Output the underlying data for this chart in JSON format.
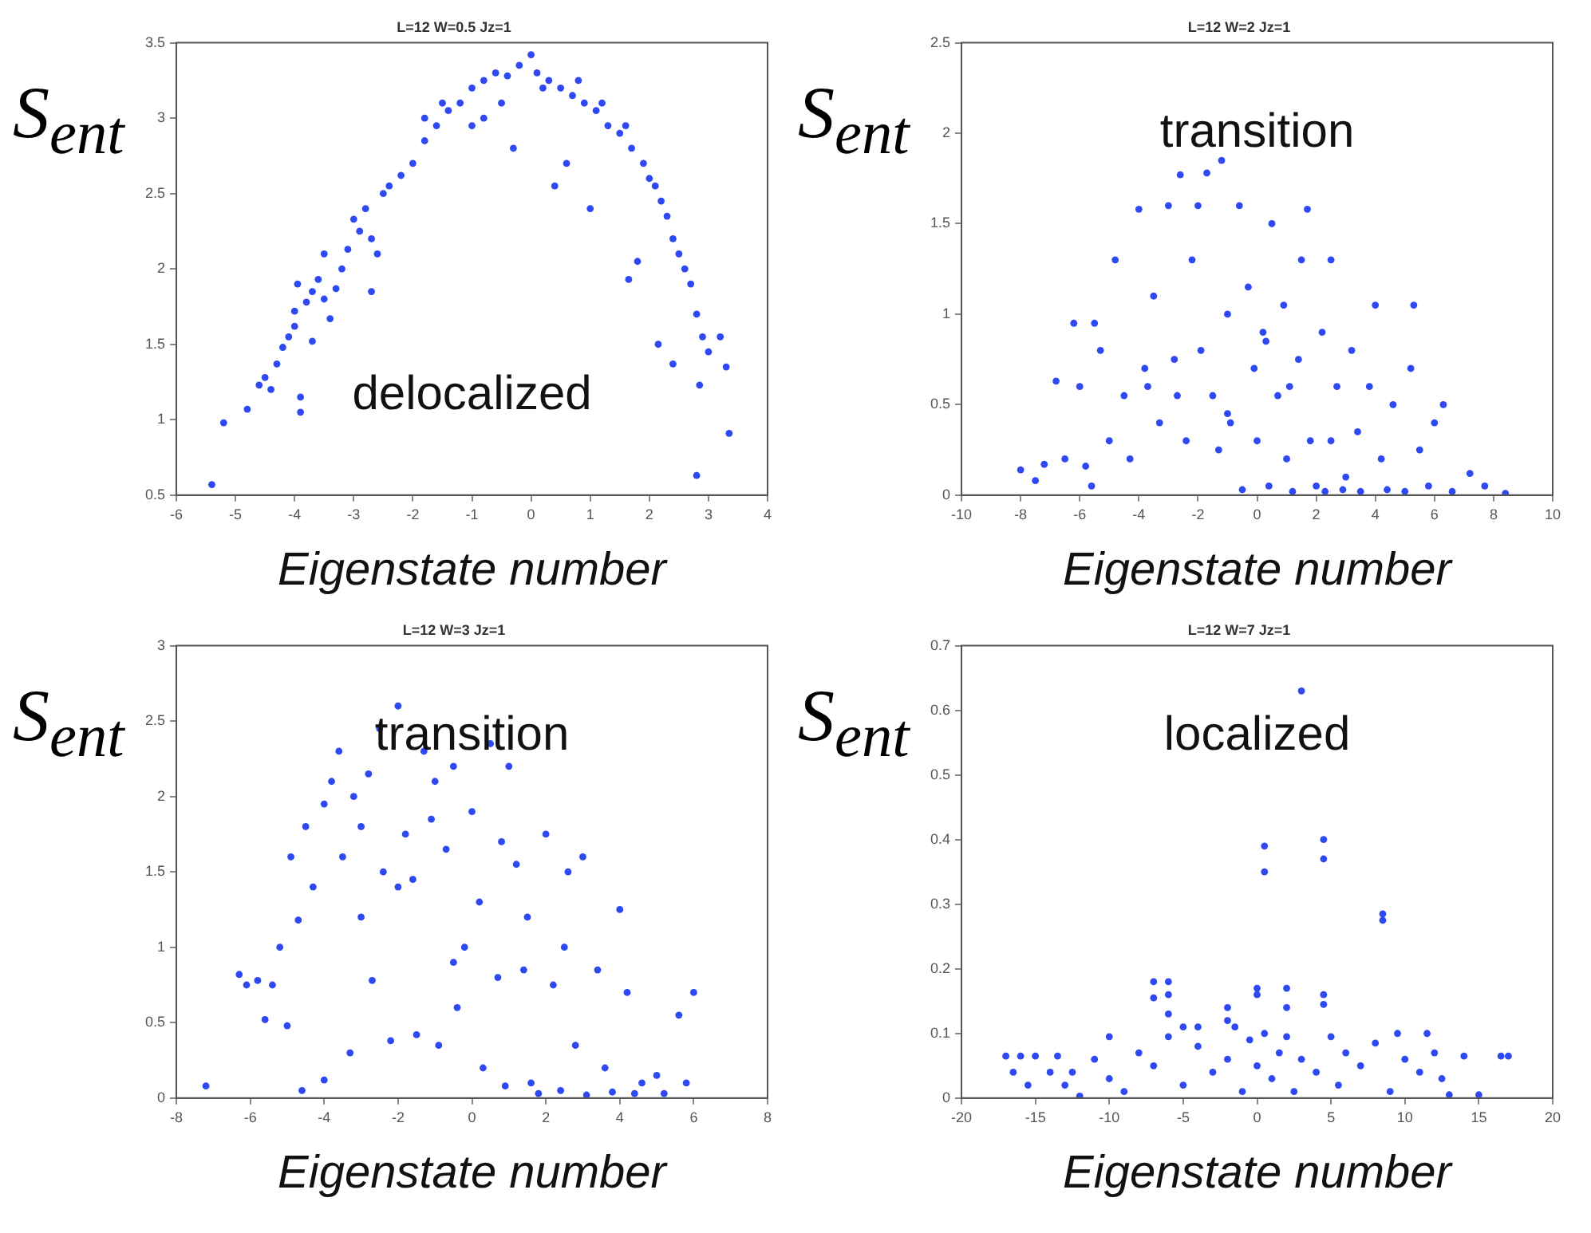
{
  "chart_data": [
    {
      "type": "scatter",
      "title": "L=12 W=0.5 Jz=1",
      "xlabel": "Eigenstate number",
      "ylabel": "S$_{ent}$",
      "annotations": [
        "delocalized"
      ],
      "marker": "circle",
      "grid": false,
      "legend": false,
      "xlim": [
        -6,
        4
      ],
      "xticks": [
        -6,
        -5,
        -4,
        -3,
        -2,
        -1,
        0,
        1,
        2,
        3,
        4
      ],
      "ylim": [
        0.5,
        3.5
      ],
      "yticks": [
        0.5,
        1,
        1.5,
        2,
        2.5,
        3,
        3.5
      ],
      "series": [
        {
          "color": "#2f49f2",
          "x": [
            -5.4,
            -5.2,
            -4.8,
            -4.6,
            -4.5,
            -4.4,
            -4.3,
            -4.2,
            -4.1,
            -4.0,
            -4.0,
            -3.95,
            -3.9,
            -3.9,
            -3.8,
            -3.7,
            -3.7,
            -3.6,
            -3.5,
            -3.4,
            -3.3,
            -3.2,
            -3.1,
            -3.0,
            -2.9,
            -2.8,
            -2.7,
            -2.6,
            -2.5,
            -2.4,
            -2.2,
            -2.0,
            -1.8,
            -1.6,
            -1.4,
            -1.2,
            -1.0,
            -0.8,
            -0.6,
            -0.4,
            -0.2,
            0,
            0.1,
            0.3,
            0.5,
            0.7,
            0.9,
            1.1,
            1.3,
            1.5,
            1.7,
            1.9,
            2.1,
            2.2,
            2.3,
            2.4,
            2.5,
            2.6,
            2.7,
            2.8,
            2.9,
            3.0,
            3.2,
            3.3,
            3.35,
            2.8,
            2.85,
            1.65,
            2.15,
            2.4,
            0.4,
            1.0,
            -0.3,
            -1.0,
            -0.8,
            0.6,
            1.8,
            -2.7,
            -3.5,
            -1.8,
            -1.5,
            -0.5,
            0.2,
            0.8,
            1.2,
            1.6,
            2.0
          ],
          "values": [
            0.57,
            0.98,
            1.07,
            1.23,
            1.28,
            1.2,
            1.37,
            1.48,
            1.55,
            1.62,
            1.72,
            1.9,
            1.15,
            1.05,
            1.78,
            1.85,
            1.52,
            1.93,
            2.1,
            1.67,
            1.87,
            2.0,
            2.13,
            2.33,
            2.25,
            2.4,
            2.2,
            2.1,
            2.5,
            2.55,
            2.62,
            2.7,
            2.85,
            2.95,
            3.05,
            3.1,
            3.2,
            3.25,
            3.3,
            3.28,
            3.35,
            3.42,
            3.3,
            3.25,
            3.2,
            3.15,
            3.1,
            3.05,
            2.95,
            2.9,
            2.8,
            2.7,
            2.55,
            2.45,
            2.35,
            2.2,
            2.1,
            2.0,
            1.9,
            1.7,
            1.55,
            1.45,
            1.55,
            1.35,
            0.91,
            0.63,
            1.23,
            1.93,
            1.5,
            1.37,
            2.55,
            2.4,
            2.8,
            2.95,
            3.0,
            2.7,
            2.05,
            1.85,
            1.8,
            3.0,
            3.1,
            3.1,
            3.2,
            3.25,
            3.1,
            2.95,
            2.6
          ]
        }
      ]
    },
    {
      "type": "scatter",
      "title": "L=12 W=2 Jz=1",
      "xlabel": "Eigenstate number",
      "ylabel": "S$_{ent}$",
      "annotations": [
        "transition"
      ],
      "marker": "circle",
      "grid": false,
      "legend": false,
      "xlim": [
        -10,
        10
      ],
      "xticks": [
        -10,
        -8,
        -6,
        -4,
        -2,
        0,
        2,
        4,
        6,
        8,
        10
      ],
      "ylim": [
        0,
        2.5
      ],
      "yticks": [
        0,
        0.5,
        1,
        1.5,
        2,
        2.5
      ],
      "series": [
        {
          "color": "#2f49f2",
          "x": [
            -8,
            -7.5,
            -7.2,
            -6.8,
            -6.5,
            -6.2,
            -6,
            -5.8,
            -5.6,
            -5.3,
            -5,
            -4.8,
            -4.5,
            -4.3,
            -4.0,
            -3.8,
            -3.5,
            -3.3,
            -3.0,
            -2.8,
            -2.6,
            -2.4,
            -2.2,
            -2.0,
            -1.9,
            -1.7,
            -1.5,
            -1.3,
            -1.2,
            -1.0,
            -0.9,
            -0.6,
            -0.5,
            -0.3,
            -0.1,
            0,
            0.2,
            0.4,
            0.5,
            0.7,
            0.9,
            1.0,
            1.2,
            1.4,
            1.5,
            1.7,
            1.8,
            2.0,
            2.2,
            2.3,
            2.5,
            2.7,
            2.9,
            3.0,
            3.2,
            3.4,
            3.5,
            3.8,
            4.0,
            4.2,
            4.4,
            4.6,
            5.0,
            5.2,
            5.3,
            5.5,
            5.8,
            6.0,
            6.3,
            6.6,
            7.2,
            7.7,
            8.4,
            -2.7,
            -1.0,
            0.3,
            1.1,
            -3.7,
            -5.5,
            2.5
          ],
          "values": [
            0.14,
            0.08,
            0.17,
            0.63,
            0.2,
            0.95,
            0.6,
            0.16,
            0.05,
            0.8,
            0.3,
            1.3,
            0.55,
            0.2,
            1.58,
            0.7,
            1.1,
            0.4,
            1.6,
            0.75,
            1.77,
            0.3,
            1.3,
            1.6,
            0.8,
            1.78,
            0.55,
            0.25,
            1.85,
            1.0,
            0.4,
            1.6,
            0.03,
            1.15,
            0.7,
            0.3,
            0.9,
            0.05,
            1.5,
            0.55,
            1.05,
            0.2,
            0.02,
            0.75,
            1.3,
            1.58,
            0.3,
            0.05,
            0.9,
            0.02,
            1.3,
            0.6,
            0.03,
            0.1,
            0.8,
            0.35,
            0.02,
            0.6,
            1.05,
            0.2,
            0.03,
            0.5,
            0.02,
            0.7,
            1.05,
            0.25,
            0.05,
            0.4,
            0.5,
            0.02,
            0.12,
            0.05,
            0.01,
            0.55,
            0.45,
            0.85,
            0.6,
            0.6,
            0.95,
            0.3
          ]
        }
      ]
    },
    {
      "type": "scatter",
      "title": "L=12 W=3 Jz=1",
      "xlabel": "Eigenstate number",
      "ylabel": "S$_{ent}$",
      "annotations": [
        "transition"
      ],
      "marker": "circle",
      "grid": false,
      "legend": false,
      "xlim": [
        -8,
        8
      ],
      "xticks": [
        -8,
        -6,
        -4,
        -2,
        0,
        2,
        4,
        6,
        8
      ],
      "ylim": [
        0,
        3
      ],
      "yticks": [
        0,
        0.5,
        1,
        1.5,
        2,
        2.5,
        3
      ],
      "series": [
        {
          "color": "#2f49f2",
          "x": [
            -7.2,
            -6.3,
            -6.1,
            -5.8,
            -5.6,
            -5.4,
            -5.2,
            -5.0,
            -4.9,
            -4.7,
            -4.6,
            -4.5,
            -4.3,
            -4.0,
            -4.0,
            -3.8,
            -3.6,
            -3.5,
            -3.3,
            -3.2,
            -3.0,
            -2.8,
            -2.7,
            -2.5,
            -2.4,
            -2.2,
            -2.0,
            -1.8,
            -1.6,
            -1.5,
            -1.3,
            -1.1,
            -0.9,
            -0.7,
            -0.5,
            -0.4,
            -0.2,
            0,
            0.2,
            0.3,
            0.5,
            0.7,
            0.9,
            1.0,
            1.2,
            1.4,
            1.6,
            1.8,
            2.0,
            2.2,
            2.4,
            2.6,
            2.8,
            3.0,
            3.1,
            3.4,
            3.6,
            3.8,
            4.0,
            4.2,
            4.4,
            4.6,
            5.0,
            5.2,
            5.6,
            5.8,
            6.0,
            -3.0,
            -1.0,
            0.8,
            2.5,
            -2.0,
            1.5,
            -0.5
          ],
          "values": [
            0.08,
            0.82,
            0.75,
            0.78,
            0.52,
            0.75,
            1.0,
            0.48,
            1.6,
            1.18,
            0.05,
            1.8,
            1.4,
            0.12,
            1.95,
            2.1,
            2.3,
            1.6,
            0.3,
            2.0,
            1.2,
            2.15,
            0.78,
            2.45,
            1.5,
            0.38,
            2.6,
            1.75,
            1.45,
            0.42,
            2.3,
            1.85,
            0.35,
            1.65,
            2.2,
            0.6,
            1.0,
            1.9,
            1.3,
            0.2,
            2.35,
            0.8,
            0.08,
            2.2,
            1.55,
            0.85,
            0.1,
            0.03,
            1.75,
            0.75,
            0.05,
            1.5,
            0.35,
            1.6,
            0.02,
            0.85,
            0.2,
            0.04,
            1.25,
            0.7,
            0.03,
            0.1,
            0.15,
            0.03,
            0.55,
            0.1,
            0.7,
            1.8,
            2.1,
            1.7,
            1.0,
            1.4,
            1.2,
            0.9
          ]
        }
      ]
    },
    {
      "type": "scatter",
      "title": "L=12 W=7 Jz=1",
      "xlabel": "Eigenstate number",
      "ylabel": "S$_{ent}$",
      "annotations": [
        "localized"
      ],
      "marker": "circle",
      "grid": false,
      "legend": false,
      "xlim": [
        -20,
        20
      ],
      "xticks": [
        -20,
        -15,
        -10,
        -5,
        0,
        5,
        10,
        15,
        20
      ],
      "ylim": [
        0,
        0.7
      ],
      "yticks": [
        0,
        0.1,
        0.2,
        0.3,
        0.4,
        0.5,
        0.6,
        0.7
      ],
      "series": [
        {
          "color": "#2f49f2",
          "x": [
            3,
            0.5,
            0.5,
            4.5,
            4.5,
            8.5,
            8.5,
            -7,
            -7,
            -6,
            -6,
            -6,
            -2,
            0,
            0,
            2,
            2,
            4.5,
            4.5,
            -4,
            -5,
            -1.5,
            -2,
            9.5,
            11.5,
            -17,
            -16.5,
            -16,
            -15.5,
            -15,
            -14,
            -13.5,
            -13,
            -12.5,
            -12,
            -11,
            -10,
            -10,
            -9,
            -8,
            -7,
            -6,
            -5,
            -4,
            -3,
            -2,
            -1,
            -0.5,
            0,
            0.5,
            1,
            1.5,
            2,
            2.5,
            3,
            4,
            5,
            5.5,
            6,
            7,
            8,
            9,
            10,
            11,
            12,
            12.5,
            13,
            14,
            15,
            16.5,
            17
          ],
          "values": [
            0.63,
            0.39,
            0.35,
            0.4,
            0.37,
            0.285,
            0.275,
            0.18,
            0.155,
            0.18,
            0.16,
            0.13,
            0.14,
            0.17,
            0.16,
            0.17,
            0.14,
            0.16,
            0.145,
            0.11,
            0.11,
            0.11,
            0.12,
            0.1,
            0.1,
            0.065,
            0.04,
            0.065,
            0.02,
            0.065,
            0.04,
            0.065,
            0.02,
            0.04,
            0.003,
            0.06,
            0.095,
            0.03,
            0.01,
            0.07,
            0.05,
            0.095,
            0.02,
            0.08,
            0.04,
            0.06,
            0.01,
            0.09,
            0.05,
            0.1,
            0.03,
            0.07,
            0.095,
            0.01,
            0.06,
            0.04,
            0.095,
            0.02,
            0.07,
            0.05,
            0.085,
            0.01,
            0.06,
            0.04,
            0.07,
            0.03,
            0.005,
            0.065,
            0.005,
            0.065,
            0.065
          ]
        }
      ]
    }
  ]
}
